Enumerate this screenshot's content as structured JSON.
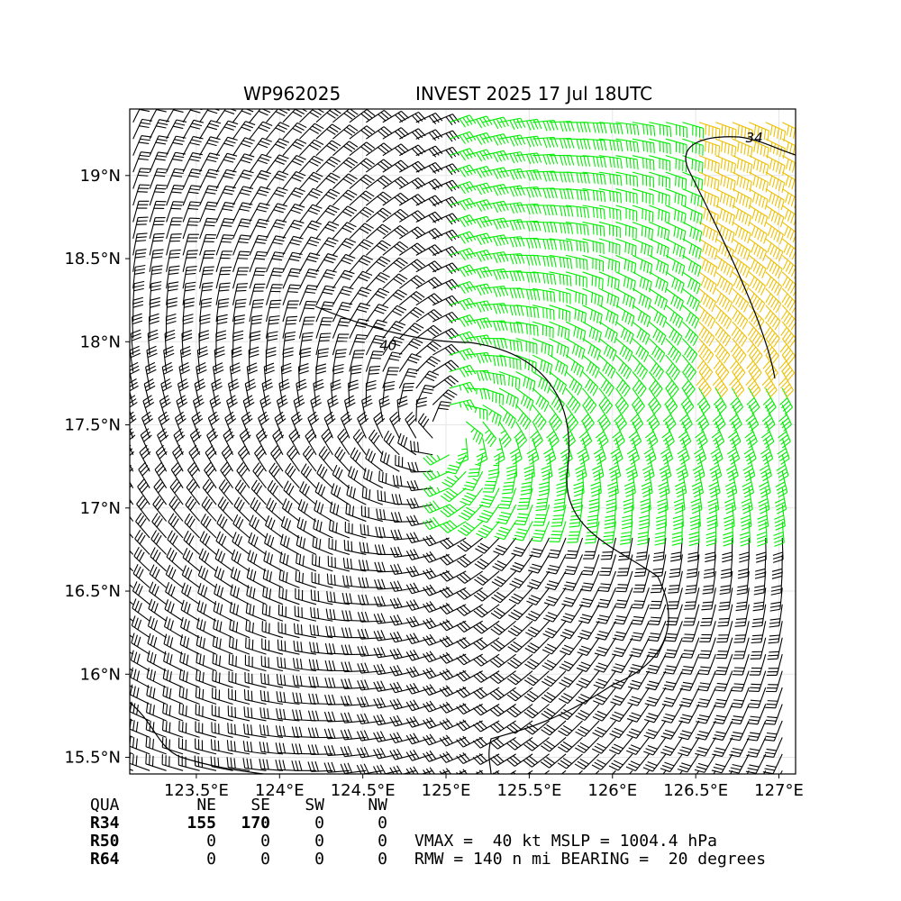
{
  "header": {
    "storm_id": "WP962025",
    "storm_label": "INVEST 2025 17 Jul 18UTC"
  },
  "chart_data": {
    "type": "wind-barb-map",
    "x_ticks": [
      "123.5°E",
      "124°E",
      "124.5°E",
      "125°E",
      "125.5°E",
      "126°E",
      "126.5°E",
      "127°E"
    ],
    "x_tick_values": [
      123.5,
      124.0,
      124.5,
      125.0,
      125.5,
      126.0,
      126.5,
      127.0
    ],
    "y_ticks": [
      "15.5°N",
      "16°N",
      "16.5°N",
      "17°N",
      "17.5°N",
      "18°N",
      "18.5°N",
      "19°N"
    ],
    "y_tick_values": [
      15.5,
      16.0,
      16.5,
      17.0,
      17.5,
      18.0,
      18.5,
      19.0
    ],
    "xlim": [
      123.1,
      127.1
    ],
    "ylim": [
      15.4,
      19.4
    ],
    "center": {
      "lon": 125.0,
      "lat": 17.45
    },
    "contour_labels": [
      {
        "text": "34",
        "lon": 126.8,
        "lat": 19.2
      },
      {
        "text": "40",
        "lon": 124.6,
        "lat": 17.95
      }
    ],
    "wind_colors": {
      "below_34": "#000000",
      "34_to_50": "#00ee00",
      "50_plus": "#eec000"
    },
    "grid": true
  },
  "radii_table": {
    "headers": [
      "QUA",
      "NE",
      "SE",
      "SW",
      "NW"
    ],
    "rows": [
      {
        "label": "R34",
        "values": [
          "155",
          "170",
          "0",
          "0"
        ]
      },
      {
        "label": "R50",
        "values": [
          "0",
          "0",
          "0",
          "0"
        ]
      },
      {
        "label": "R64",
        "values": [
          "0",
          "0",
          "0",
          "0"
        ]
      }
    ]
  },
  "summary": {
    "line1": "VMAX =  40 kt MSLP = 1004.4 hPa",
    "line2": "RMW = 140 n mi BEARING =  20 degrees"
  }
}
